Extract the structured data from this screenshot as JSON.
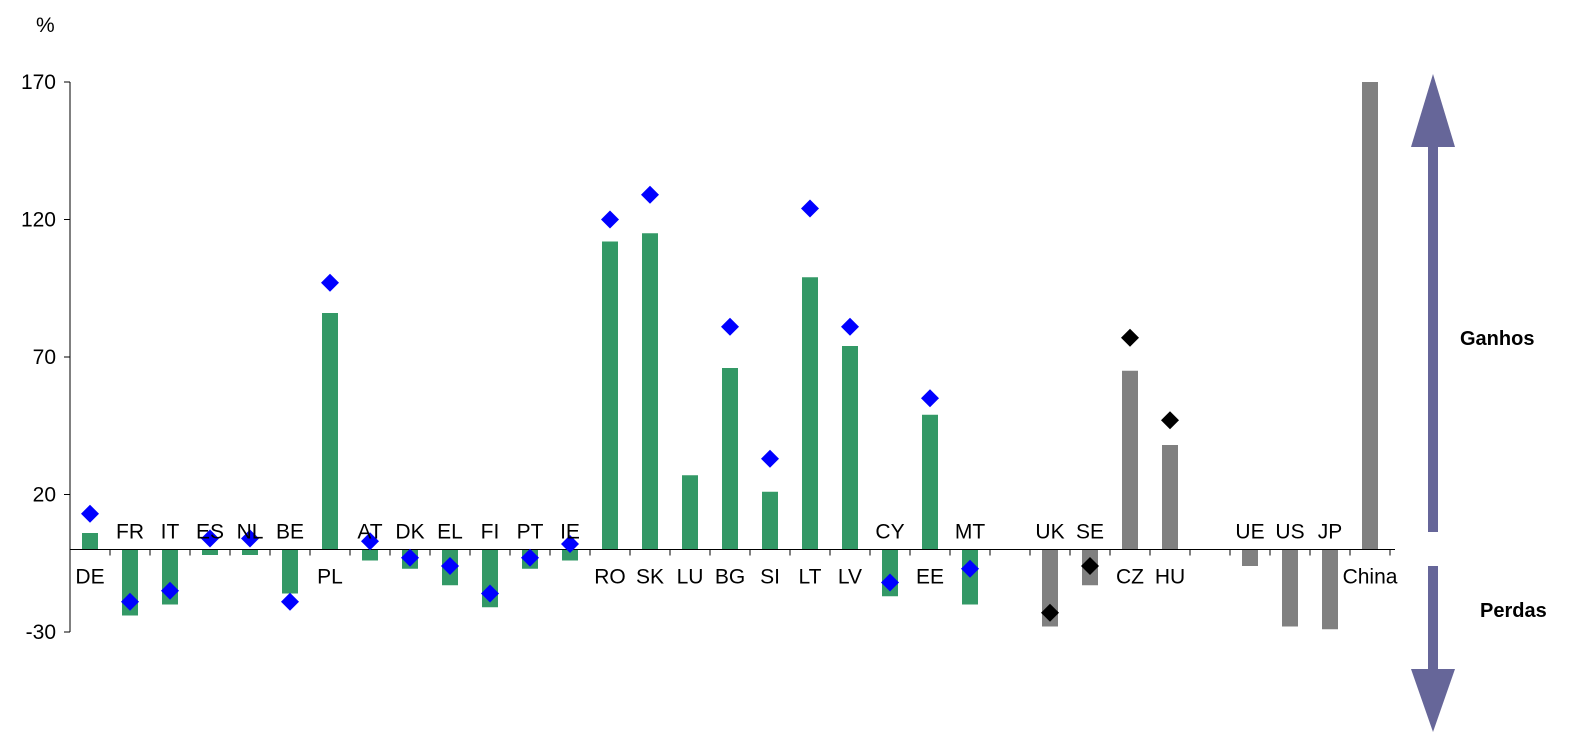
{
  "chart_data": {
    "type": "bar",
    "ylabel": "%",
    "ylim": [
      -30,
      170
    ],
    "yticks": [
      -30,
      20,
      70,
      120,
      170
    ],
    "categories": [
      "DE",
      "FR",
      "IT",
      "ES",
      "NL",
      "BE",
      "PL",
      "AT",
      "DK",
      "EL",
      "FI",
      "PT",
      "IE",
      "RO",
      "SK",
      "LU",
      "BG",
      "SI",
      "LT",
      "LV",
      "CY",
      "EE",
      "MT",
      "UK",
      "SE",
      "CZ",
      "HU",
      "UE",
      "US",
      "JP",
      "China"
    ],
    "category_groups": [
      "eu",
      "eu",
      "eu",
      "eu",
      "eu",
      "eu",
      "eu",
      "eu",
      "eu",
      "eu",
      "eu",
      "eu",
      "eu",
      "eu",
      "eu",
      "eu",
      "eu",
      "eu",
      "eu",
      "eu",
      "eu",
      "eu",
      "eu",
      "non_euro",
      "non_euro",
      "non_euro",
      "non_euro",
      "world",
      "world",
      "world",
      "world"
    ],
    "category_gaps_after": [
      22,
      26
    ],
    "series": [
      {
        "values": [
          6,
          -24,
          -20,
          -2,
          -2,
          -16,
          86,
          -4,
          -7,
          -13,
          -21,
          -7,
          -4,
          112,
          115,
          27,
          66,
          21,
          99,
          74,
          -17,
          49,
          -20,
          -28,
          -13,
          65,
          38,
          -6,
          -28,
          -29,
          170
        ]
      },
      {
        "values": [
          13,
          -19,
          -15,
          4,
          4,
          -19,
          97,
          3,
          -3,
          -6,
          -16,
          -3,
          2,
          120,
          129,
          null,
          81,
          33,
          124,
          81,
          -12,
          55,
          -7,
          -23,
          -6,
          77,
          47,
          null,
          null,
          null,
          null
        ]
      }
    ],
    "colors": {
      "bar_eu": "#339966",
      "bar_other": "#808080",
      "marker_eu": "#0000FF",
      "marker_other": "#000000",
      "arrow": "#666699"
    },
    "annotations": {
      "gains": "Ganhos",
      "losses": "Perdas"
    }
  }
}
